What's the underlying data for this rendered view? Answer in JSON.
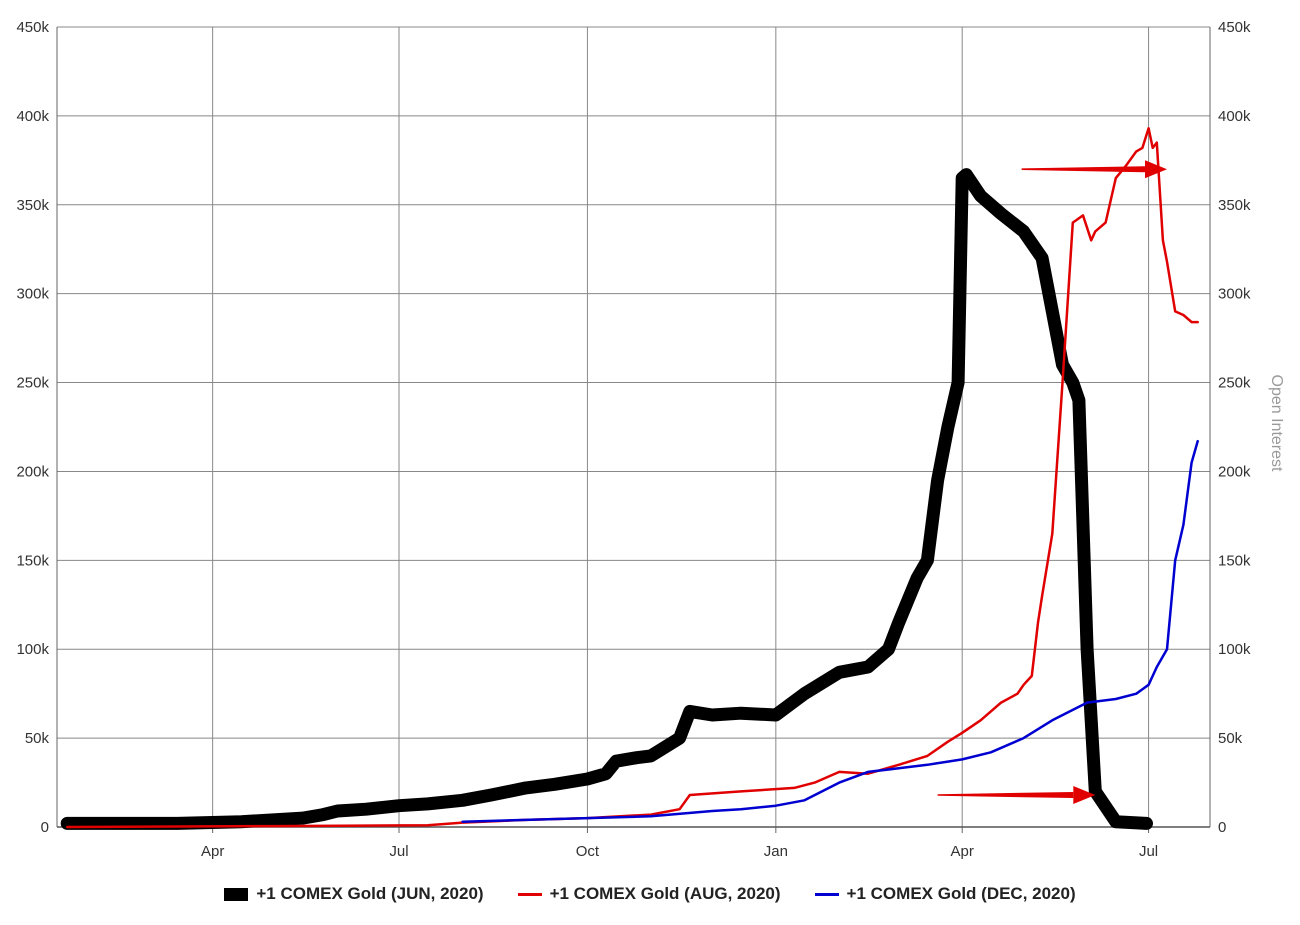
{
  "chart_data": {
    "type": "line",
    "x_ticks": [
      "Apr",
      "Jul",
      "Oct",
      "Jan",
      "Apr",
      "Jul"
    ],
    "y_ticks": [
      "0",
      "50k",
      "100k",
      "150k",
      "200k",
      "250k",
      "300k",
      "350k",
      "400k",
      "450k"
    ],
    "ylim": [
      0,
      450000
    ],
    "xlim": [
      "2019-01-15",
      "2020-07-31"
    ],
    "y2label": "Open Interest",
    "grid": true,
    "legend_position": "bottom",
    "series": [
      {
        "name": "+1 COMEX Gold (JUN, 2020)",
        "color": "#000000",
        "x": [
          "2019-01-20",
          "2019-02-15",
          "2019-03-15",
          "2019-04-15",
          "2019-05-15",
          "2019-05-25",
          "2019-06-01",
          "2019-06-15",
          "2019-07-01",
          "2019-07-15",
          "2019-08-01",
          "2019-08-15",
          "2019-09-01",
          "2019-09-15",
          "2019-10-01",
          "2019-10-10",
          "2019-10-15",
          "2019-10-25",
          "2019-11-01",
          "2019-11-15",
          "2019-11-20",
          "2019-12-01",
          "2019-12-15",
          "2020-01-01",
          "2020-01-15",
          "2020-02-01",
          "2020-02-15",
          "2020-02-25",
          "2020-03-01",
          "2020-03-10",
          "2020-03-15",
          "2020-03-20",
          "2020-03-25",
          "2020-03-30",
          "2020-04-01",
          "2020-04-03",
          "2020-04-10",
          "2020-04-20",
          "2020-05-01",
          "2020-05-10",
          "2020-05-15",
          "2020-05-20",
          "2020-05-25",
          "2020-05-28",
          "2020-06-01",
          "2020-06-05",
          "2020-06-15",
          "2020-06-30"
        ],
        "values": [
          2000,
          2000,
          2000,
          3000,
          5000,
          7000,
          9000,
          10000,
          12000,
          13000,
          15000,
          18000,
          22000,
          24000,
          27000,
          30000,
          37000,
          39000,
          40000,
          50000,
          65000,
          63000,
          64000,
          63000,
          75000,
          87000,
          90000,
          100000,
          115000,
          140000,
          150000,
          195000,
          225000,
          250000,
          365000,
          367000,
          355000,
          345000,
          335000,
          320000,
          290000,
          260000,
          250000,
          240000,
          100000,
          20000,
          3000,
          2000
        ]
      },
      {
        "name": "+1 COMEX Gold (AUG, 2020)",
        "color": "#e00000",
        "x": [
          "2019-01-20",
          "2019-05-01",
          "2019-07-15",
          "2019-08-01",
          "2019-09-01",
          "2019-10-01",
          "2019-11-01",
          "2019-11-15",
          "2019-11-20",
          "2019-12-15",
          "2020-01-10",
          "2020-01-20",
          "2020-02-01",
          "2020-02-15",
          "2020-03-01",
          "2020-03-15",
          "2020-03-25",
          "2020-04-01",
          "2020-04-10",
          "2020-04-20",
          "2020-04-28",
          "2020-05-01",
          "2020-05-05",
          "2020-05-08",
          "2020-05-10",
          "2020-05-15",
          "2020-05-20",
          "2020-05-25",
          "2020-05-30",
          "2020-06-03",
          "2020-06-05",
          "2020-06-10",
          "2020-06-15",
          "2020-06-20",
          "2020-06-25",
          "2020-06-28",
          "2020-07-01",
          "2020-07-03",
          "2020-07-05",
          "2020-07-08",
          "2020-07-10",
          "2020-07-14",
          "2020-07-18",
          "2020-07-22",
          "2020-07-25"
        ],
        "values": [
          0,
          500,
          1000,
          2500,
          4000,
          5000,
          7000,
          10000,
          18000,
          20000,
          22000,
          25000,
          31000,
          30000,
          35000,
          40000,
          48000,
          53000,
          60000,
          70000,
          75000,
          80000,
          85000,
          115000,
          130000,
          165000,
          250000,
          340000,
          344000,
          330000,
          335000,
          340000,
          365000,
          372000,
          380000,
          382000,
          393000,
          382000,
          385000,
          330000,
          318000,
          290000,
          288000,
          284000,
          284000
        ]
      },
      {
        "name": "+1 COMEX Gold (DEC, 2020)",
        "color": "#0000d0",
        "x": [
          "2019-08-01",
          "2019-09-01",
          "2019-10-01",
          "2019-11-01",
          "2019-12-01",
          "2019-12-15",
          "2020-01-01",
          "2020-01-15",
          "2020-02-01",
          "2020-02-15",
          "2020-03-01",
          "2020-03-15",
          "2020-04-01",
          "2020-04-15",
          "2020-05-01",
          "2020-05-15",
          "2020-06-01",
          "2020-06-15",
          "2020-06-25",
          "2020-07-01",
          "2020-07-05",
          "2020-07-10",
          "2020-07-14",
          "2020-07-18",
          "2020-07-22",
          "2020-07-25"
        ],
        "values": [
          3000,
          4000,
          5000,
          6000,
          9000,
          10000,
          12000,
          15000,
          25000,
          31000,
          33000,
          35000,
          38000,
          42000,
          50000,
          60000,
          70000,
          72000,
          75000,
          80000,
          90000,
          100000,
          150000,
          170000,
          205000,
          217000
        ]
      }
    ],
    "annotations": [
      {
        "type": "arrow",
        "color": "#e00000",
        "from": [
          "2020-04-30",
          370000
        ],
        "to": [
          "2020-07-10",
          370000
        ]
      },
      {
        "type": "arrow",
        "color": "#e00000",
        "from": [
          "2020-03-20",
          18000
        ],
        "to": [
          "2020-06-05",
          18000
        ]
      }
    ]
  }
}
